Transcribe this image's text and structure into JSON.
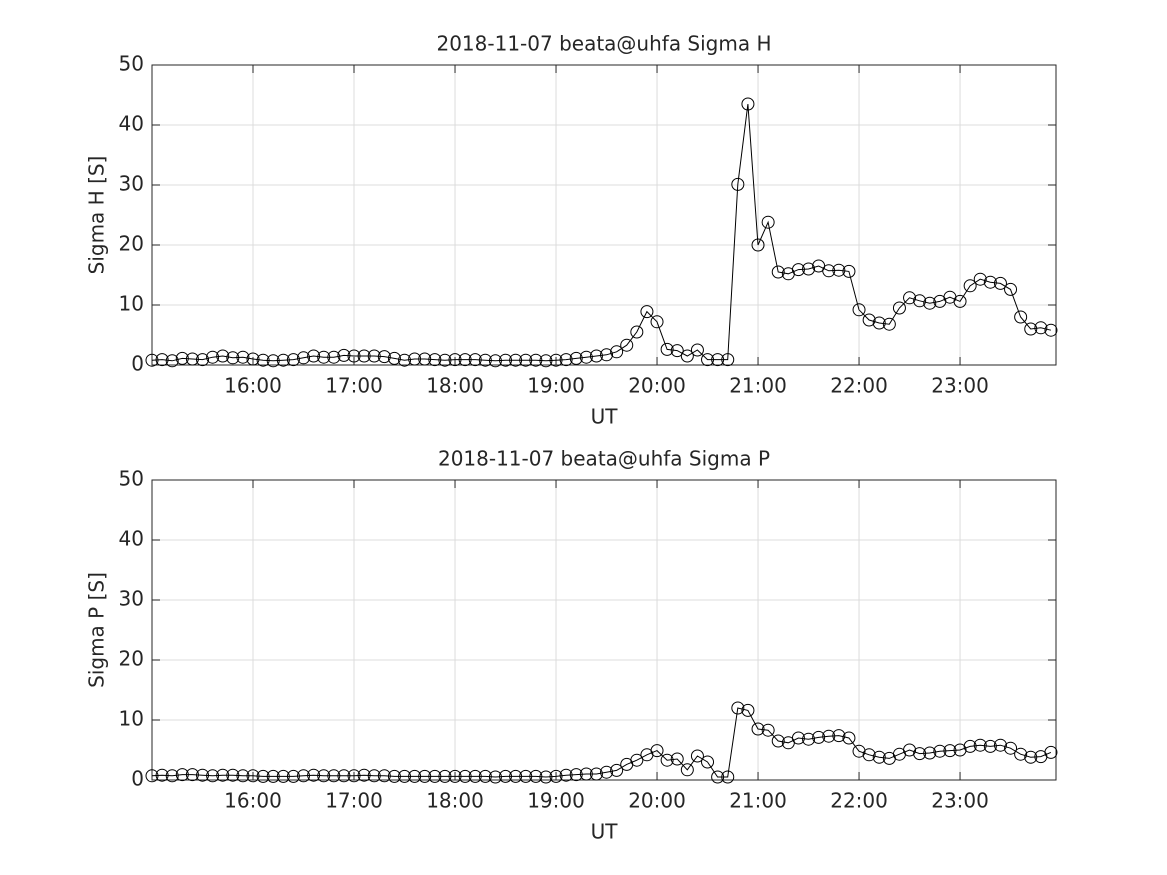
{
  "chart_data": [
    {
      "type": "line",
      "title": "2018-11-07  beata@uhfa Sigma H",
      "xlabel": "UT",
      "ylabel": "Sigma H [S]",
      "x": [
        15,
        15.1,
        15.2,
        15.3,
        15.4,
        15.5,
        15.6,
        15.7,
        15.8,
        15.9,
        16,
        16.1,
        16.2,
        16.3,
        16.4,
        16.5,
        16.6,
        16.7,
        16.8,
        16.9,
        17,
        17.1,
        17.2,
        17.3,
        17.4,
        17.5,
        17.6,
        17.7,
        17.8,
        17.9,
        18,
        18.1,
        18.2,
        18.3,
        18.4,
        18.5,
        18.6,
        18.7,
        18.8,
        18.9,
        19,
        19.1,
        19.2,
        19.3,
        19.4,
        19.5,
        19.6,
        19.7,
        19.8,
        19.9,
        20,
        20.1,
        20.2,
        20.3,
        20.4,
        20.5,
        20.6,
        20.7,
        20.8,
        20.9,
        21,
        21.1,
        21.2,
        21.3,
        21.4,
        21.5,
        21.6,
        21.7,
        21.8,
        21.9,
        22,
        22.1,
        22.2,
        22.3,
        22.4,
        22.5,
        22.6,
        22.7,
        22.8,
        22.9,
        23,
        23.1,
        23.2,
        23.3,
        23.4,
        23.5,
        23.6,
        23.7,
        23.8,
        23.9
      ],
      "values": [
        0.8,
        0.9,
        0.7,
        1.1,
        1.0,
        0.9,
        1.3,
        1.5,
        1.2,
        1.3,
        1.0,
        0.8,
        0.7,
        0.8,
        0.9,
        1.2,
        1.5,
        1.3,
        1.3,
        1.6,
        1.5,
        1.5,
        1.5,
        1.4,
        1.1,
        0.8,
        1.0,
        1.0,
        0.9,
        0.8,
        0.9,
        0.9,
        0.9,
        0.8,
        0.7,
        0.8,
        0.8,
        0.8,
        0.8,
        0.7,
        0.8,
        0.9,
        1.1,
        1.3,
        1.5,
        1.7,
        2.2,
        3.3,
        5.5,
        8.9,
        7.2,
        2.6,
        2.4,
        1.5,
        2.5,
        0.9,
        0.9,
        0.9,
        30.1,
        43.5,
        20.0,
        23.8,
        15.5,
        15.2,
        15.9,
        16.0,
        16.5,
        15.7,
        15.8,
        15.6,
        9.2,
        7.5,
        7.0,
        6.8,
        9.5,
        11.2,
        10.7,
        10.3,
        10.6,
        11.3,
        10.6,
        13.2,
        14.3,
        13.8,
        13.6,
        12.6,
        8.0,
        6.0,
        6.2,
        5.8
      ],
      "color": "#000000",
      "xlim": [
        15,
        23.95
      ],
      "ylim": [
        0,
        50
      ],
      "xticks": [
        {
          "value": 16,
          "label": "16:00"
        },
        {
          "value": 17,
          "label": "17:00"
        },
        {
          "value": 18,
          "label": "18:00"
        },
        {
          "value": 19,
          "label": "19:00"
        },
        {
          "value": 20,
          "label": "20:00"
        },
        {
          "value": 21,
          "label": "21:00"
        },
        {
          "value": 22,
          "label": "22:00"
        },
        {
          "value": 23,
          "label": "23:00"
        }
      ],
      "yticks": [
        0,
        10,
        20,
        30,
        40,
        50
      ],
      "grid": true
    },
    {
      "type": "line",
      "title": "2018-11-07  beata@uhfa Sigma P",
      "xlabel": "UT",
      "ylabel": "Sigma P [S]",
      "x": [
        15,
        15.1,
        15.2,
        15.3,
        15.4,
        15.5,
        15.6,
        15.7,
        15.8,
        15.9,
        16,
        16.1,
        16.2,
        16.3,
        16.4,
        16.5,
        16.6,
        16.7,
        16.8,
        16.9,
        17,
        17.1,
        17.2,
        17.3,
        17.4,
        17.5,
        17.6,
        17.7,
        17.8,
        17.9,
        18,
        18.1,
        18.2,
        18.3,
        18.4,
        18.5,
        18.6,
        18.7,
        18.8,
        18.9,
        19,
        19.1,
        19.2,
        19.3,
        19.4,
        19.5,
        19.6,
        19.7,
        19.8,
        19.9,
        20,
        20.1,
        20.2,
        20.3,
        20.4,
        20.5,
        20.6,
        20.7,
        20.8,
        20.9,
        21,
        21.1,
        21.2,
        21.3,
        21.4,
        21.5,
        21.6,
        21.7,
        21.8,
        21.9,
        22,
        22.1,
        22.2,
        22.3,
        22.4,
        22.5,
        22.6,
        22.7,
        22.8,
        22.9,
        23,
        23.1,
        23.2,
        23.3,
        23.4,
        23.5,
        23.6,
        23.7,
        23.8,
        23.9
      ],
      "values": [
        0.7,
        0.8,
        0.7,
        0.9,
        0.9,
        0.8,
        0.7,
        0.8,
        0.8,
        0.7,
        0.7,
        0.6,
        0.6,
        0.6,
        0.6,
        0.7,
        0.8,
        0.7,
        0.7,
        0.7,
        0.7,
        0.8,
        0.7,
        0.7,
        0.6,
        0.6,
        0.6,
        0.6,
        0.6,
        0.6,
        0.6,
        0.6,
        0.6,
        0.6,
        0.5,
        0.6,
        0.6,
        0.6,
        0.6,
        0.5,
        0.6,
        0.8,
        0.9,
        1.0,
        1.0,
        1.3,
        1.6,
        2.6,
        3.3,
        4.2,
        4.9,
        3.3,
        3.5,
        1.7,
        4.0,
        3.0,
        0.5,
        0.5,
        12.0,
        11.6,
        8.5,
        8.3,
        6.5,
        6.2,
        7.0,
        6.8,
        7.1,
        7.3,
        7.4,
        7.0,
        4.8,
        4.2,
        3.8,
        3.6,
        4.3,
        5.0,
        4.4,
        4.5,
        4.8,
        4.9,
        5.0,
        5.6,
        5.8,
        5.6,
        5.8,
        5.3,
        4.3,
        3.8,
        3.9,
        4.6
      ],
      "color": "#000000",
      "xlim": [
        15,
        23.95
      ],
      "ylim": [
        0,
        50
      ],
      "xticks": [
        {
          "value": 16,
          "label": "16:00"
        },
        {
          "value": 17,
          "label": "17:00"
        },
        {
          "value": 18,
          "label": "18:00"
        },
        {
          "value": 19,
          "label": "19:00"
        },
        {
          "value": 20,
          "label": "20:00"
        },
        {
          "value": 21,
          "label": "21:00"
        },
        {
          "value": 22,
          "label": "22:00"
        },
        {
          "value": 23,
          "label": "23:00"
        }
      ],
      "yticks": [
        0,
        10,
        20,
        30,
        40,
        50
      ],
      "grid": true
    }
  ]
}
